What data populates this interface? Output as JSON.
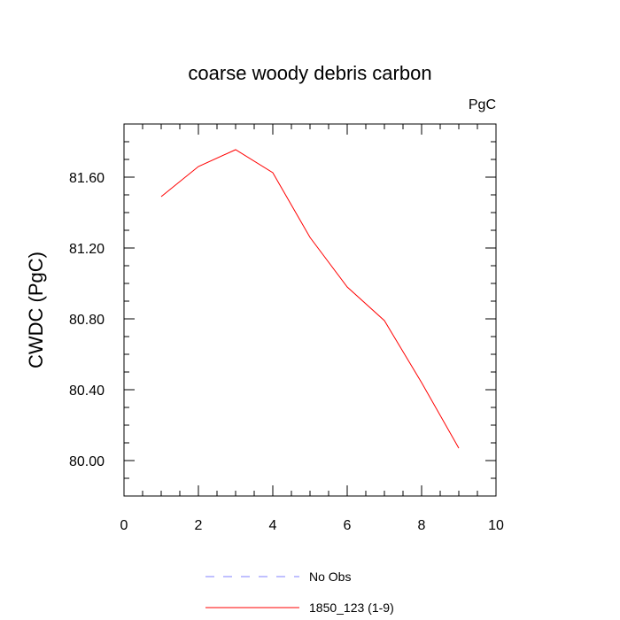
{
  "chart_data": {
    "type": "line",
    "title": "coarse woody debris carbon",
    "units_label": "PgC",
    "ylabel": "CWDC  (PgC)",
    "xlabel": "",
    "xlim": [
      0,
      10
    ],
    "ylim": [
      79.8,
      81.9
    ],
    "xticks": [
      0,
      2,
      4,
      6,
      8,
      10
    ],
    "xtick_labels": [
      "0",
      "2",
      "4",
      "6",
      "8",
      "10"
    ],
    "yticks": [
      80.0,
      80.4,
      80.8,
      81.2,
      81.6
    ],
    "ytick_labels": [
      "80.00",
      "80.40",
      "80.80",
      "81.20",
      "81.60"
    ],
    "grid": false,
    "legend_position": "bottom",
    "series": [
      {
        "name": "1850_123 (1-9)",
        "color": "#ff0000",
        "style": "solid",
        "x": [
          1,
          2,
          3,
          4,
          5,
          6,
          7,
          8,
          9
        ],
        "y": [
          81.49,
          81.66,
          81.755,
          81.625,
          81.26,
          80.98,
          80.79,
          80.44,
          80.07
        ]
      }
    ],
    "legend": [
      {
        "label": "No Obs",
        "color": "#8080ff",
        "style": "dashed"
      },
      {
        "label": "1850_123 (1-9)",
        "color": "#ff0000",
        "style": "solid"
      }
    ]
  }
}
